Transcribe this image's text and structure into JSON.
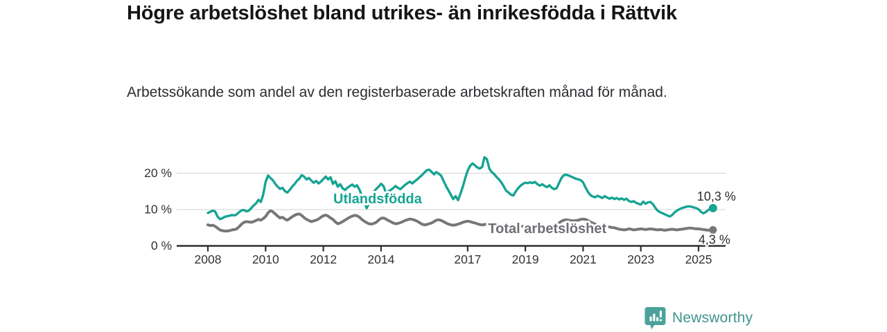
{
  "header": {
    "title": "Högre arbetslöshet bland utrikes- än inrikesfödda i Rättvik",
    "subtitle": "Arbetssökande som andel av den registerbaserade arbetskraften månad för månad."
  },
  "chart_data": {
    "type": "line",
    "unit": "%",
    "x_start_year": 2008,
    "points_per_year": 12,
    "x_end_label_x": 2025.58,
    "xticks": [
      2008,
      2010,
      2012,
      2014,
      2017,
      2019,
      2021,
      2023,
      2025
    ],
    "yticks": [
      {
        "value": 0,
        "label": "0 %"
      },
      {
        "value": 10,
        "label": "10 %"
      },
      {
        "value": 20,
        "label": "20 %"
      }
    ],
    "ylim": [
      0,
      25.5
    ],
    "grid": "horizontal",
    "legend_position": "inline-labels",
    "axis_color": "#2d2d2d",
    "grid_color": "#d9d9d9",
    "series": [
      {
        "name": "Utlandsfödda",
        "color": "#16a493",
        "line_width": 3.4,
        "end_label": "10,3 %",
        "end_value": 10.3,
        "label_anchor": {
          "year": 2013.88,
          "value": 11.6
        },
        "end_label_offset": {
          "dx": 5,
          "dy": -11
        },
        "values": [
          9.0,
          9.3,
          9.6,
          9.4,
          8.0,
          7.3,
          7.5,
          7.9,
          8.1,
          8.2,
          8.4,
          8.3,
          8.6,
          9.2,
          9.7,
          9.8,
          9.4,
          9.6,
          10.3,
          11.0,
          11.6,
          12.6,
          12.0,
          14.0,
          17.5,
          19.3,
          18.6,
          18.0,
          17.0,
          16.2,
          15.6,
          15.9,
          15.0,
          14.6,
          15.3,
          16.2,
          16.9,
          17.8,
          18.4,
          19.4,
          19.0,
          18.2,
          18.6,
          17.9,
          17.3,
          17.8,
          17.1,
          17.6,
          18.3,
          19.0,
          18.2,
          18.8,
          17.0,
          17.7,
          16.2,
          16.9,
          15.8,
          15.3,
          15.9,
          16.4,
          16.8,
          16.2,
          16.6,
          15.4,
          13.8,
          11.9,
          10.3,
          11.6,
          13.5,
          14.8,
          15.6,
          16.2,
          17.0,
          16.4,
          14.6,
          14.9,
          15.3,
          15.8,
          16.4,
          15.9,
          15.5,
          16.1,
          16.7,
          17.2,
          17.6,
          17.1,
          17.7,
          18.2,
          18.8,
          19.4,
          20.1,
          20.7,
          20.9,
          20.3,
          19.6,
          20.2,
          19.8,
          19.2,
          17.8,
          16.4,
          15.2,
          14.0,
          12.8,
          13.6,
          12.5,
          14.2,
          16.2,
          18.6,
          20.6,
          21.9,
          22.6,
          22.1,
          21.5,
          21.2,
          21.6,
          24.3,
          23.8,
          21.2,
          20.2,
          19.7,
          18.9,
          18.2,
          17.4,
          16.3,
          15.1,
          14.6,
          14.0,
          13.8,
          14.9,
          15.8,
          16.5,
          17.0,
          17.3,
          17.2,
          17.4,
          17.2,
          17.5,
          16.9,
          16.5,
          16.9,
          16.4,
          16.1,
          16.6,
          15.9,
          15.5,
          15.8,
          17.2,
          18.6,
          19.4,
          19.5,
          19.3,
          19.0,
          18.7,
          18.4,
          18.2,
          18.0,
          17.4,
          16.0,
          14.8,
          13.9,
          13.5,
          13.3,
          13.7,
          13.4,
          13.1,
          13.6,
          13.2,
          12.9,
          13.2,
          12.8,
          13.1,
          12.7,
          13.0,
          12.6,
          12.9,
          12.3,
          12.0,
          12.2,
          11.8,
          11.5,
          11.3,
          12.1,
          11.5,
          11.9,
          12.0,
          11.4,
          10.4,
          9.6,
          9.2,
          8.9,
          8.6,
          8.3,
          8.0,
          8.4,
          9.1,
          9.6,
          10.0,
          10.3,
          10.5,
          10.7,
          10.8,
          10.7,
          10.5,
          10.3,
          10.0,
          9.3,
          8.9,
          9.2,
          9.8,
          10.1,
          10.3
        ]
      },
      {
        "name": "Total arbetslöshet",
        "color": "#77777b",
        "line_width": 4.0,
        "end_label": "4,3 %",
        "end_value": 4.3,
        "label_anchor": {
          "year": 2019.76,
          "value": 3.4
        },
        "end_label_offset": {
          "dx": 2,
          "dy": 20
        },
        "values": [
          5.7,
          5.5,
          5.6,
          5.3,
          4.8,
          4.3,
          4.1,
          4.0,
          4.0,
          4.1,
          4.3,
          4.4,
          4.6,
          5.2,
          5.9,
          6.4,
          6.6,
          6.5,
          6.4,
          6.6,
          6.9,
          7.2,
          7.0,
          7.4,
          8.0,
          9.0,
          9.6,
          9.3,
          8.7,
          8.1,
          7.6,
          7.8,
          7.3,
          7.0,
          7.4,
          7.9,
          8.3,
          8.6,
          8.7,
          8.3,
          7.7,
          7.2,
          6.9,
          6.6,
          6.8,
          7.0,
          7.3,
          7.8,
          8.2,
          8.4,
          8.1,
          7.6,
          7.2,
          6.5,
          6.0,
          6.2,
          6.6,
          7.0,
          7.4,
          7.8,
          8.1,
          8.3,
          8.2,
          7.8,
          7.2,
          6.7,
          6.3,
          6.0,
          5.9,
          6.1,
          6.4,
          7.0,
          7.5,
          7.6,
          7.3,
          6.9,
          6.6,
          6.2,
          6.0,
          6.1,
          6.3,
          6.6,
          6.9,
          7.1,
          7.3,
          7.2,
          7.0,
          6.7,
          6.3,
          5.9,
          5.7,
          5.8,
          6.0,
          6.2,
          6.6,
          7.0,
          7.1,
          6.9,
          6.6,
          6.2,
          5.9,
          5.7,
          5.6,
          5.7,
          5.9,
          6.1,
          6.4,
          6.6,
          6.7,
          6.6,
          6.4,
          6.2,
          6.0,
          5.8,
          5.7,
          5.8,
          5.9,
          5.7,
          5.6,
          5.7,
          5.8,
          5.7,
          5.5,
          5.3,
          5.1,
          4.9,
          4.8,
          4.9,
          5.0,
          5.1,
          5.2,
          5.3,
          5.4,
          5.3,
          5.2,
          5.1,
          5.0,
          4.9,
          4.9,
          5.0,
          5.1,
          5.2,
          5.3,
          5.4,
          5.5,
          5.7,
          6.2,
          6.7,
          7.0,
          7.1,
          7.0,
          6.9,
          6.8,
          6.9,
          7.0,
          7.2,
          7.3,
          7.2,
          6.9,
          6.5,
          6.2,
          5.9,
          5.7,
          5.5,
          5.4,
          5.3,
          5.2,
          5.1,
          5.0,
          4.9,
          4.7,
          4.5,
          4.4,
          4.3,
          4.4,
          4.6,
          4.5,
          4.3,
          4.4,
          4.5,
          4.6,
          4.5,
          4.4,
          4.5,
          4.6,
          4.5,
          4.4,
          4.3,
          4.4,
          4.3,
          4.2,
          4.3,
          4.4,
          4.5,
          4.4,
          4.3,
          4.4,
          4.5,
          4.6,
          4.7,
          4.8,
          4.8,
          4.7,
          4.6,
          4.6,
          4.5,
          4.4,
          4.3,
          4.2,
          4.3,
          4.3
        ]
      }
    ]
  },
  "branding": {
    "name": "Newsworthy",
    "icon": "newsworthy-bar-chart-pin-icon",
    "color": "#4aa29a"
  }
}
